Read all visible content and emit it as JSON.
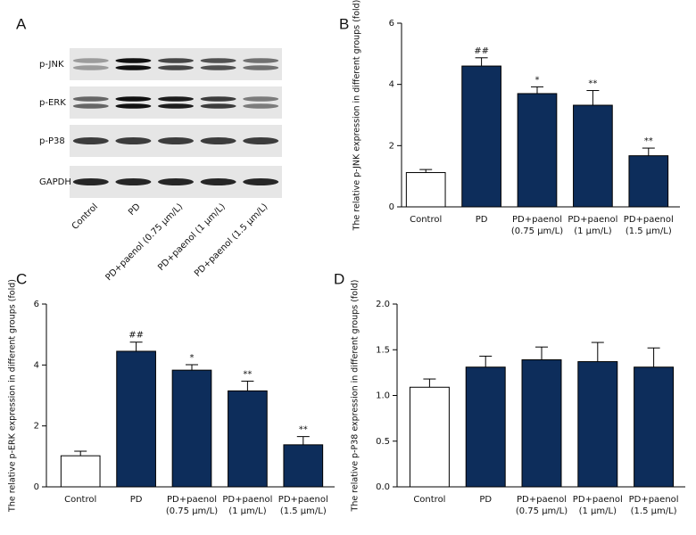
{
  "blot": {
    "panel_label": "A",
    "rows": [
      "p-JNK",
      "p-ERK",
      "p-P38",
      "GAPDH"
    ],
    "lanes": [
      "Control",
      "PD",
      "PD+paenol (0.75 μm/L)",
      "PD+paenol (1 μm/L)",
      "PD+paenol (1.5 μm/L)"
    ]
  },
  "chart_data": [
    {
      "type": "bar",
      "panel_label": "B",
      "y_label": "The relative p-JNK expression in different groups (fold)",
      "categories": [
        [
          "Control"
        ],
        [
          "PD"
        ],
        [
          "PD+paenol",
          "(0.75 μm/L)"
        ],
        [
          "PD+paenol",
          "(1 μm/L)"
        ],
        [
          "PD+paenol",
          "(1.5 μm/L)"
        ]
      ],
      "values": [
        1.12,
        4.6,
        3.7,
        3.32,
        1.67
      ],
      "errors": [
        0.1,
        0.27,
        0.22,
        0.48,
        0.25
      ],
      "annotations": [
        null,
        "##",
        "*",
        "**",
        "**"
      ],
      "colors": [
        "#ffffff",
        "#0d2d5b",
        "#0d2d5b",
        "#0d2d5b",
        "#0d2d5b"
      ],
      "ylim": [
        0,
        6
      ],
      "yticks": [
        0,
        2,
        4,
        6
      ]
    },
    {
      "type": "bar",
      "panel_label": "C",
      "y_label": "The relative p-ERK expression in different groups (fold)",
      "categories": [
        [
          "Control"
        ],
        [
          "PD"
        ],
        [
          "PD+paenol",
          "(0.75 μm/L)"
        ],
        [
          "PD+paenol",
          "(1 μm/L)"
        ],
        [
          "PD+paenol",
          "(1.5 μm/L)"
        ]
      ],
      "values": [
        1.02,
        4.45,
        3.83,
        3.15,
        1.38
      ],
      "errors": [
        0.15,
        0.3,
        0.18,
        0.32,
        0.27
      ],
      "annotations": [
        null,
        "##",
        "*",
        "**",
        "**"
      ],
      "colors": [
        "#ffffff",
        "#0d2d5b",
        "#0d2d5b",
        "#0d2d5b",
        "#0d2d5b"
      ],
      "ylim": [
        0,
        6
      ],
      "yticks": [
        0,
        2,
        4,
        6
      ]
    },
    {
      "type": "bar",
      "panel_label": "D",
      "y_label": "The relative p-P38 expression in different groups (fold)",
      "categories": [
        [
          "Control"
        ],
        [
          "PD"
        ],
        [
          "PD+paenol",
          "(0.75 μm/L)"
        ],
        [
          "PD+paenol",
          "(1 μm/L)"
        ],
        [
          "PD+paenol",
          "(1.5 μm/L)"
        ]
      ],
      "values": [
        1.09,
        1.31,
        1.39,
        1.37,
        1.31
      ],
      "errors": [
        0.09,
        0.12,
        0.14,
        0.21,
        0.21
      ],
      "colors": [
        "#ffffff",
        "#0d2d5b",
        "#0d2d5b",
        "#0d2d5b",
        "#0d2d5b"
      ],
      "ylim": [
        0,
        2.0
      ],
      "yticks": [
        {
          "value": 0,
          "label": "0.0"
        },
        {
          "value": 0.5,
          "label": "0.5"
        },
        {
          "value": 1,
          "label": "1.0"
        },
        {
          "value": 1.5,
          "label": "1.5"
        },
        {
          "value": 2,
          "label": "2.0"
        }
      ]
    }
  ]
}
